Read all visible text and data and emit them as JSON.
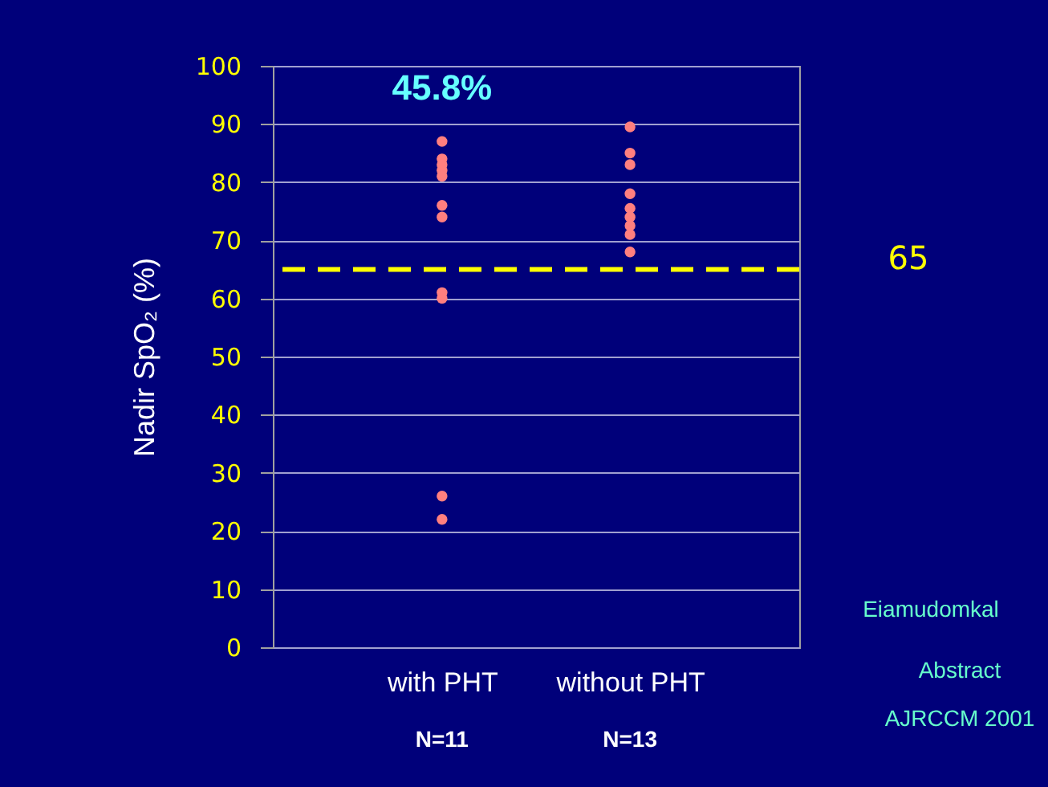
{
  "chart_data": {
    "type": "scatter",
    "ylabel": "Nadir SpO₂ (%)",
    "categories": [
      "with PHT",
      "without PHT"
    ],
    "series": [
      {
        "color": "#ff7f7f",
        "x": [
          "with PHT",
          "with PHT",
          "with PHT",
          "with PHT",
          "with PHT",
          "with PHT",
          "with PHT",
          "with PHT",
          "with PHT",
          "with PHT",
          "with PHT"
        ],
        "values": [
          87,
          84,
          83,
          82,
          81,
          76,
          74,
          61,
          60,
          26,
          22
        ]
      },
      {
        "color": "#ff7f7f",
        "x": [
          "without PHT",
          "without PHT",
          "without PHT",
          "without PHT",
          "without PHT",
          "without PHT",
          "without PHT",
          "without PHT",
          "without PHT"
        ],
        "values": [
          89.5,
          85,
          83,
          78,
          75.5,
          74,
          72.5,
          71,
          68
        ]
      }
    ],
    "ylim": [
      0,
      100
    ],
    "yticks": [
      0,
      10,
      20,
      30,
      40,
      50,
      60,
      70,
      80,
      90,
      100
    ],
    "grid": "y",
    "marker": "circle",
    "ref_lines": [
      {
        "axis": "y",
        "value": 65,
        "label": "65",
        "color": "#ffff00",
        "line_style": "dashed"
      }
    ],
    "annotations": [
      "45.8%",
      "N=11",
      "N=13",
      "Eiamudomkal",
      "Abstract",
      "AJRCCM 2001"
    ]
  }
}
